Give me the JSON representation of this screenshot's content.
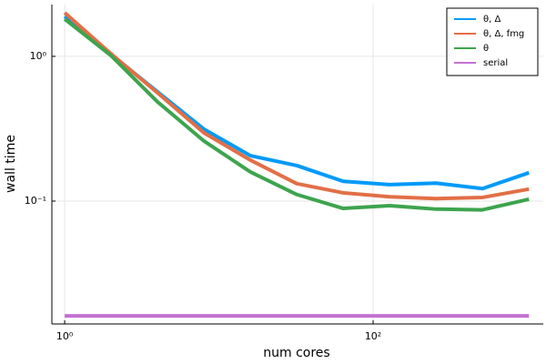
{
  "chart_data": {
    "type": "line",
    "xlabel": "num cores",
    "ylabel": "wall time",
    "x": [
      1,
      2,
      4,
      8,
      16,
      32,
      64,
      128,
      256,
      512,
      1024
    ],
    "xscale": "log",
    "yscale": "log",
    "xlim": [
      0.826,
      1268
    ],
    "ylim": [
      0.01416,
      2.28
    ],
    "xticks": [
      {
        "value": 1,
        "label": "10⁰"
      },
      {
        "value": 100,
        "label": "10²"
      }
    ],
    "yticks": [
      {
        "value": 0.1,
        "label": "10⁻¹"
      },
      {
        "value": 1,
        "label": "10⁰"
      }
    ],
    "grid": true,
    "legend": "upper right",
    "series": [
      {
        "name": "θ, Δ",
        "color": "#009af9",
        "values": [
          1.89,
          1.03,
          0.569,
          0.314,
          0.206,
          0.176,
          0.137,
          0.13,
          0.133,
          0.122,
          0.157
        ]
      },
      {
        "name": "θ, Δ, fmg",
        "color": "#e26f46",
        "values": [
          2.0,
          1.04,
          0.56,
          0.296,
          0.192,
          0.132,
          0.114,
          0.107,
          0.104,
          0.106,
          0.121
        ]
      },
      {
        "name": "θ",
        "color": "#3da44d",
        "values": [
          1.81,
          1.01,
          0.485,
          0.26,
          0.159,
          0.111,
          0.089,
          0.093,
          0.088,
          0.087,
          0.103
        ]
      },
      {
        "name": "serial",
        "color": "#c271d2",
        "values": [
          0.0161,
          0.0161,
          0.0161,
          0.0161,
          0.0161,
          0.0161,
          0.0161,
          0.0161,
          0.0161,
          0.0161,
          0.0161
        ]
      }
    ]
  }
}
